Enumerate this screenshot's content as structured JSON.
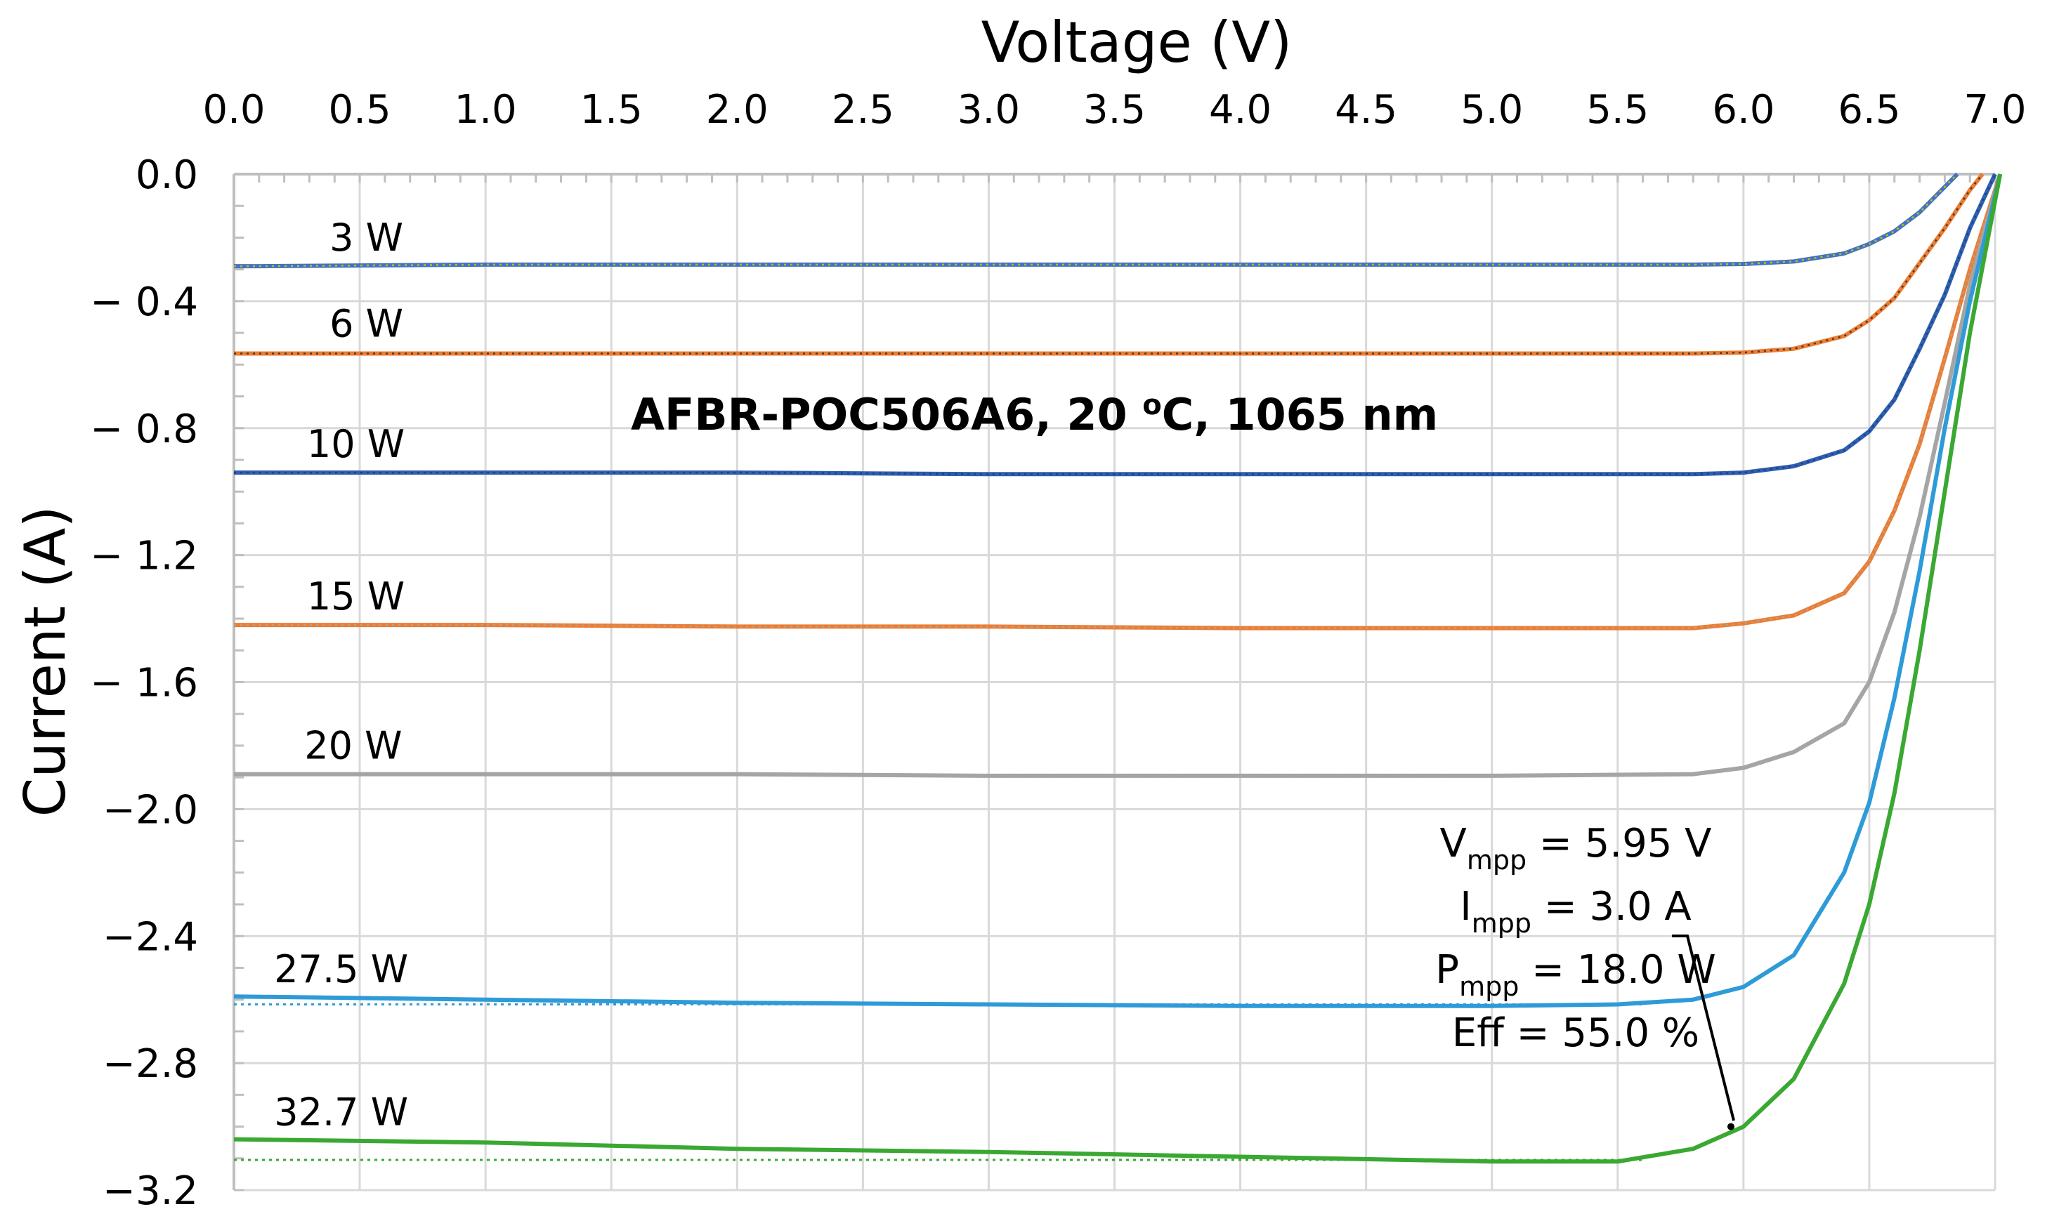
{
  "chart_data": {
    "type": "line",
    "title": "AFBR-POC506A6, 20 °C, 1065 nm",
    "title_parts": {
      "prefix": "AFBR-POC506A6, 20 ",
      "degree": "o",
      "suffix": "C, 1065 nm"
    },
    "xlabel": "Voltage (V)",
    "ylabel": "Current (A)",
    "xlim": [
      0,
      7
    ],
    "ylim": [
      -3.2,
      0
    ],
    "x_ticks": [
      0,
      0.5,
      1,
      1.5,
      2,
      2.5,
      3,
      3.5,
      4,
      4.5,
      5,
      5.5,
      6,
      6.5,
      7
    ],
    "x_tick_labels": [
      "0.0",
      "0.5",
      "1.0",
      "1.5",
      "2.0",
      "2.5",
      "3.0",
      "3.5",
      "4.0",
      "4.5",
      "5.0",
      "5.5",
      "6.0",
      "6.5",
      "7.0"
    ],
    "y_ticks": [
      0,
      -0.4,
      -0.8,
      -1.2,
      -1.6,
      -2.0,
      -2.4,
      -2.8,
      -3.2
    ],
    "y_tick_labels": [
      "0.0",
      "− 0.4",
      "− 0.8",
      "− 1.2",
      "− 1.6",
      "−2.0",
      "−2.4",
      "−2.8",
      "−3.2"
    ],
    "grid": true,
    "x_axis_position": "top",
    "series": [
      {
        "name": "3 W",
        "color": "#4472c4",
        "fit_color": "#c9c900",
        "x": [
          0,
          0.1,
          1,
          2,
          3,
          4,
          5,
          5.8,
          6.0,
          6.2,
          6.4,
          6.5,
          6.6,
          6.7,
          6.8,
          6.85
        ],
        "values": [
          -0.29,
          -0.29,
          -0.285,
          -0.285,
          -0.285,
          -0.285,
          -0.285,
          -0.285,
          -0.283,
          -0.275,
          -0.25,
          -0.22,
          -0.18,
          -0.12,
          -0.04,
          0.0
        ]
      },
      {
        "name": "6 W",
        "color": "#ed7d31",
        "fit_color": "#333333",
        "x": [
          0,
          1,
          2,
          3,
          4,
          5,
          5.8,
          6.0,
          6.2,
          6.4,
          6.5,
          6.6,
          6.7,
          6.8,
          6.9,
          6.95
        ],
        "values": [
          -0.565,
          -0.565,
          -0.565,
          -0.565,
          -0.565,
          -0.565,
          -0.565,
          -0.562,
          -0.55,
          -0.51,
          -0.46,
          -0.39,
          -0.28,
          -0.17,
          -0.05,
          0.0
        ]
      },
      {
        "name": "10 W",
        "color": "#2e5fb0",
        "fit_color": "#1f3f7a",
        "x": [
          0,
          1,
          2,
          3,
          4,
          5,
          5.8,
          6.0,
          6.2,
          6.4,
          6.5,
          6.6,
          6.7,
          6.8,
          6.9,
          7.0
        ],
        "values": [
          -0.94,
          -0.94,
          -0.94,
          -0.945,
          -0.945,
          -0.945,
          -0.945,
          -0.94,
          -0.92,
          -0.87,
          -0.81,
          -0.71,
          -0.55,
          -0.38,
          -0.17,
          0.0
        ]
      },
      {
        "name": "15 W",
        "color": "#ed7d31",
        "fit_color": "#a6a6a6",
        "x": [
          0,
          1,
          2,
          3,
          4,
          5,
          5.8,
          6.0,
          6.2,
          6.4,
          6.5,
          6.6,
          6.7,
          6.8,
          6.9,
          7.02
        ],
        "values": [
          -1.42,
          -1.42,
          -1.425,
          -1.425,
          -1.43,
          -1.43,
          -1.43,
          -1.415,
          -1.39,
          -1.32,
          -1.22,
          -1.06,
          -0.85,
          -0.58,
          -0.3,
          0.0
        ]
      },
      {
        "name": "20 W",
        "color": "#a5a5a5",
        "fit_color": "#a5a5a5",
        "x": [
          0,
          1,
          2,
          3,
          4,
          5,
          5.8,
          6.0,
          6.2,
          6.4,
          6.5,
          6.6,
          6.7,
          6.8,
          6.9,
          7.02
        ],
        "values": [
          -1.89,
          -1.89,
          -1.89,
          -1.895,
          -1.895,
          -1.895,
          -1.89,
          -1.87,
          -1.82,
          -1.73,
          -1.6,
          -1.38,
          -1.08,
          -0.72,
          -0.35,
          0.0
        ]
      },
      {
        "name": "27.5 W",
        "color": "#2e9bd8",
        "fit_color": "#2e9bd8",
        "x": [
          0,
          1,
          2,
          3,
          4,
          5,
          5.5,
          5.8,
          6.0,
          6.2,
          6.4,
          6.5,
          6.6,
          6.7,
          6.8,
          6.9,
          7.02
        ],
        "values": [
          -2.59,
          -2.6,
          -2.61,
          -2.615,
          -2.62,
          -2.62,
          -2.615,
          -2.6,
          -2.56,
          -2.46,
          -2.2,
          -1.98,
          -1.65,
          -1.25,
          -0.8,
          -0.4,
          0.0
        ]
      },
      {
        "name": "32.7 W",
        "color": "#3aa832",
        "fit_color": "#3aa832",
        "x": [
          0,
          1,
          2,
          3,
          4,
          5,
          5.5,
          5.8,
          6.0,
          6.2,
          6.4,
          6.5,
          6.6,
          6.7,
          6.8,
          6.9,
          7.02
        ],
        "values": [
          -3.04,
          -3.05,
          -3.07,
          -3.08,
          -3.095,
          -3.11,
          -3.11,
          -3.07,
          -3.0,
          -2.85,
          -2.55,
          -2.3,
          -1.95,
          -1.5,
          -1.0,
          -0.5,
          0.0
        ]
      }
    ],
    "fit_lines": [
      {
        "series": "27.5 W",
        "y": -2.615
      },
      {
        "series": "32.7 W",
        "y": -3.105
      }
    ],
    "annotation": {
      "lines": [
        {
          "main": "V",
          "sub": "mpp",
          "rest": " = 5.95 V"
        },
        {
          "main": "I",
          "sub": "mpp",
          "rest": " = 3.0 A"
        },
        {
          "main": "P",
          "sub": "mpp",
          "rest": " = 18.0 W"
        },
        {
          "main": "Eff = 55.0 %",
          "sub": "",
          "rest": ""
        }
      ],
      "points_to": {
        "x": 5.95,
        "y": -3.0
      }
    }
  }
}
